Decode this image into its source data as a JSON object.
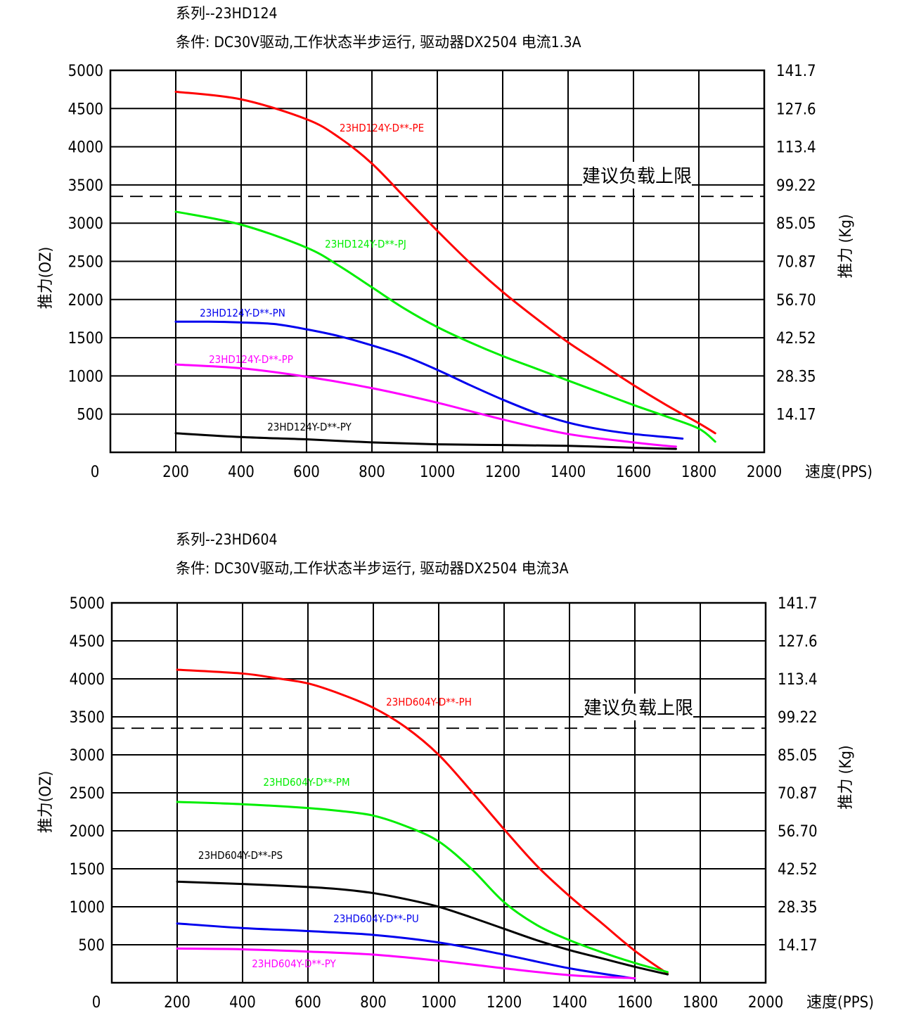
{
  "charts": [
    {
      "series_title": "系列--23HD124",
      "conditions": "条件: DC30V驱动,工作状态半步运行, 驱动器DX2504 电流1.3A",
      "ylabel_left": "推力(OZ)",
      "ylabel_right": "推力 (Kg)",
      "origin_label": "0",
      "x_unit_label": "速度(PPS)",
      "threshold_label": "建议负载上限",
      "right_ticks": [
        "141.7",
        "127.6",
        "113.4",
        "99.22",
        "85.05",
        "70.87",
        "56.70",
        "42.52",
        "28.35",
        "14.17"
      ]
    },
    {
      "series_title": "系列--23HD604",
      "conditions": "条件: DC30V驱动,工作状态半步运行, 驱动器DX2504 电流3A",
      "ylabel_left": "推力(OZ)",
      "ylabel_right": "推力 (Kg)",
      "origin_label": "0",
      "x_unit_label": "速度(PPS)",
      "threshold_label": "建议负载上限",
      "right_ticks": [
        "141.7",
        "127.6",
        "113.4",
        "99.22",
        "85.05",
        "70.87",
        "56.70",
        "42.52",
        "28.35",
        "14.17"
      ]
    }
  ],
  "chart_data": [
    {
      "type": "line",
      "title": "系列--23HD124",
      "subtitle": "条件: DC30V驱动,工作状态半步运行, 驱动器DX2504 电流1.3A",
      "xlabel": "速度(PPS)",
      "ylabel": "推力(OZ)",
      "y2label": "推力 (Kg)",
      "xlim": [
        0,
        2000
      ],
      "ylim": [
        0,
        5000
      ],
      "xticks": [
        200,
        400,
        600,
        800,
        1000,
        1200,
        1400,
        1600,
        1800,
        2000
      ],
      "yticks": [
        500,
        1000,
        1500,
        2000,
        2500,
        3000,
        3500,
        4000,
        4500,
        5000
      ],
      "grid": true,
      "threshold": {
        "y": 3350,
        "label": "建议负载上限",
        "style": "dashed"
      },
      "series": [
        {
          "name": "23HD124Y-D**-PE",
          "color": "#ff0000",
          "x": [
            200,
            400,
            600,
            700,
            800,
            900,
            1000,
            1100,
            1200,
            1300,
            1400,
            1500,
            1600,
            1700,
            1800,
            1850
          ],
          "y": [
            4720,
            4620,
            4360,
            4120,
            3780,
            3340,
            2900,
            2480,
            2100,
            1760,
            1440,
            1160,
            880,
            620,
            380,
            250
          ]
        },
        {
          "name": "23HD124Y-D**-PJ",
          "color": "#00ee00",
          "x": [
            200,
            400,
            600,
            700,
            800,
            900,
            1000,
            1100,
            1200,
            1300,
            1400,
            1500,
            1600,
            1700,
            1800,
            1850
          ],
          "y": [
            3150,
            2980,
            2680,
            2440,
            2160,
            1880,
            1640,
            1440,
            1260,
            1100,
            940,
            780,
            620,
            470,
            310,
            140
          ]
        },
        {
          "name": "23HD124Y-D**-PN",
          "color": "#0000ee",
          "x": [
            200,
            300,
            400,
            500,
            600,
            700,
            800,
            900,
            1000,
            1100,
            1200,
            1300,
            1400,
            1500,
            1600,
            1700,
            1750
          ],
          "y": [
            1710,
            1710,
            1700,
            1680,
            1610,
            1520,
            1400,
            1260,
            1080,
            880,
            690,
            520,
            390,
            300,
            240,
            200,
            180
          ]
        },
        {
          "name": "23HD124Y-D**-PP",
          "color": "#ff00ff",
          "x": [
            200,
            400,
            600,
            800,
            1000,
            1200,
            1400,
            1600,
            1700,
            1730
          ],
          "y": [
            1150,
            1100,
            990,
            840,
            650,
            430,
            240,
            130,
            85,
            75
          ]
        },
        {
          "name": "23HD124Y-D**-PY",
          "color": "#000000",
          "x": [
            200,
            400,
            600,
            800,
            1000,
            1200,
            1400,
            1600,
            1730
          ],
          "y": [
            250,
            200,
            170,
            130,
            105,
            95,
            85,
            60,
            45
          ]
        }
      ]
    },
    {
      "type": "line",
      "title": "系列--23HD604",
      "subtitle": "条件: DC30V驱动,工作状态半步运行, 驱动器DX2504 电流3A",
      "xlabel": "速度(PPS)",
      "ylabel": "推力(OZ)",
      "y2label": "推力 (Kg)",
      "xlim": [
        0,
        2000
      ],
      "ylim": [
        0,
        5000
      ],
      "xticks": [
        200,
        400,
        600,
        800,
        1000,
        1200,
        1400,
        1600,
        1800,
        2000
      ],
      "yticks": [
        500,
        1000,
        1500,
        2000,
        2500,
        3000,
        3500,
        4000,
        4500,
        5000
      ],
      "grid": true,
      "threshold": {
        "y": 3350,
        "label": "建议负载上限",
        "style": "dashed"
      },
      "series": [
        {
          "name": "23HD604Y-D**-PH",
          "color": "#ff0000",
          "x": [
            200,
            400,
            500,
            600,
            700,
            800,
            900,
            1000,
            1100,
            1200,
            1300,
            1400,
            1500,
            1600,
            1700
          ],
          "y": [
            4120,
            4070,
            4010,
            3940,
            3800,
            3620,
            3360,
            3000,
            2520,
            2020,
            1540,
            1140,
            780,
            420,
            120
          ]
        },
        {
          "name": "23HD604Y-D**-PM",
          "color": "#00ee00",
          "x": [
            200,
            400,
            600,
            700,
            800,
            900,
            1000,
            1100,
            1200,
            1300,
            1400,
            1500,
            1600,
            1700
          ],
          "y": [
            2380,
            2350,
            2300,
            2260,
            2200,
            2060,
            1860,
            1500,
            1060,
            760,
            560,
            400,
            260,
            140
          ]
        },
        {
          "name": "23HD604Y-D**-PS",
          "color": "#000000",
          "x": [
            200,
            400,
            600,
            700,
            800,
            900,
            1000,
            1100,
            1200,
            1300,
            1400,
            1500,
            1600,
            1700
          ],
          "y": [
            1330,
            1300,
            1260,
            1230,
            1180,
            1100,
            1000,
            860,
            710,
            560,
            430,
            320,
            210,
            110
          ]
        },
        {
          "name": "23HD604Y-D**-PU",
          "color": "#0000ee",
          "x": [
            200,
            400,
            600,
            800,
            1000,
            1200,
            1400,
            1600
          ],
          "y": [
            780,
            720,
            680,
            630,
            530,
            370,
            190,
            55
          ]
        },
        {
          "name": "23HD604Y-D**-PY",
          "color": "#ff00ff",
          "x": [
            200,
            400,
            600,
            800,
            1000,
            1200,
            1400,
            1600
          ],
          "y": [
            450,
            440,
            410,
            370,
            290,
            190,
            100,
            60
          ]
        }
      ]
    }
  ]
}
